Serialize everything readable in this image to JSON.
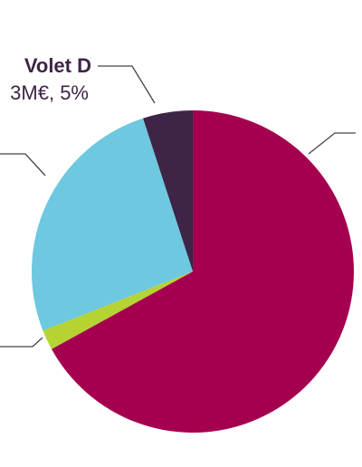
{
  "chart_data": {
    "type": "pie",
    "categories": [
      null,
      null,
      null,
      "Volet D"
    ],
    "values": [
      67,
      2,
      26,
      5
    ],
    "value_labels": [
      null,
      null,
      null,
      "3M€, 5%"
    ],
    "colors": [
      "#a5004f",
      "#b6d334",
      "#6dc8e0",
      "#3e2447"
    ]
  }
}
